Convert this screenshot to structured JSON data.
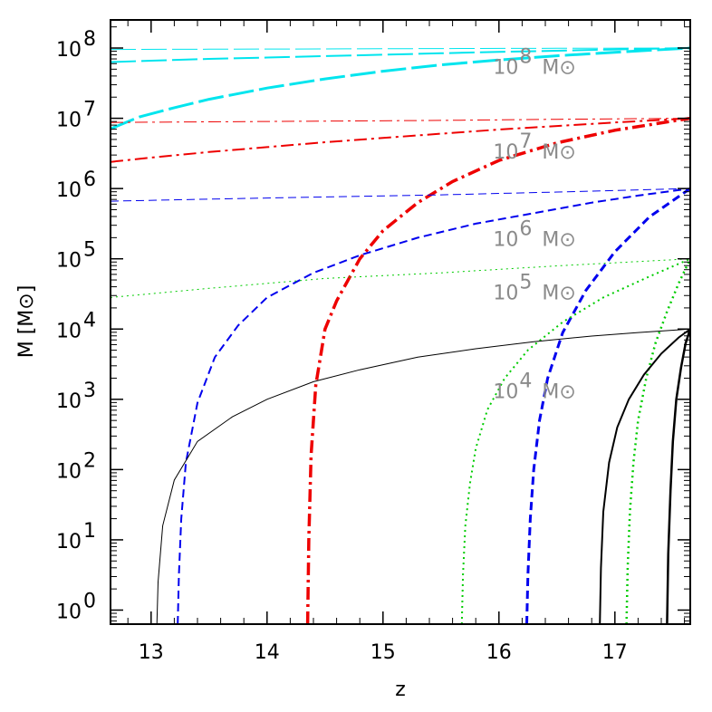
{
  "chart_data": {
    "type": "line",
    "title": "",
    "xlabel": "z",
    "ylabel": "M [M⊙]",
    "xlim": [
      12.65,
      17.65
    ],
    "ylim_log10": [
      -0.2,
      8.4
    ],
    "y_scale": "log",
    "grid": false,
    "x_ticks": [
      13,
      14,
      15,
      16,
      17
    ],
    "y_ticks": [
      {
        "base": "10",
        "exp": "0",
        "value_log10": 0
      },
      {
        "base": "10",
        "exp": "1",
        "value_log10": 1
      },
      {
        "base": "10",
        "exp": "2",
        "value_log10": 2
      },
      {
        "base": "10",
        "exp": "3",
        "value_log10": 3
      },
      {
        "base": "10",
        "exp": "4",
        "value_log10": 4
      },
      {
        "base": "10",
        "exp": "5",
        "value_log10": 5
      },
      {
        "base": "10",
        "exp": "6",
        "value_log10": 6
      },
      {
        "base": "10",
        "exp": "7",
        "value_log10": 7
      },
      {
        "base": "10",
        "exp": "8",
        "value_log10": 8
      }
    ],
    "annotations": [
      {
        "base": "10",
        "exp": "8",
        "unit": "M⊙",
        "z": 15.95,
        "log10_m": 7.63
      },
      {
        "base": "10",
        "exp": "7",
        "unit": "M⊙",
        "z": 15.95,
        "log10_m": 6.43
      },
      {
        "base": "10",
        "exp": "6",
        "unit": "M⊙",
        "z": 15.95,
        "log10_m": 5.18
      },
      {
        "base": "10",
        "exp": "5",
        "unit": "M⊙",
        "z": 15.95,
        "log10_m": 4.42
      },
      {
        "base": "10",
        "exp": "4",
        "unit": "M⊙",
        "z": 15.95,
        "log10_m": 3.02
      }
    ],
    "series": [
      {
        "color": "#00e5ee",
        "dash": "28,6",
        "width": 1,
        "x": [
          12.65,
          13.5,
          14.5,
          15.5,
          16.5,
          17.65
        ],
        "log10_y": [
          7.98,
          7.984,
          7.988,
          7.992,
          7.996,
          8.0
        ]
      },
      {
        "color": "#00e5ee",
        "dash": "28,6",
        "width": 2,
        "x": [
          12.65,
          13.0,
          13.5,
          14.0,
          14.5,
          15.0,
          15.5,
          16.0,
          16.5,
          17.0,
          17.65
        ],
        "log10_y": [
          7.8,
          7.82,
          7.845,
          7.865,
          7.885,
          7.905,
          7.925,
          7.945,
          7.962,
          7.98,
          8.0
        ]
      },
      {
        "color": "#00e5ee",
        "dash": "28,6",
        "width": 3,
        "x": [
          12.65,
          12.9,
          13.2,
          13.5,
          14.0,
          14.5,
          15.0,
          15.5,
          16.0,
          16.5,
          17.0,
          17.65
        ],
        "log10_y": [
          6.85,
          7.02,
          7.15,
          7.27,
          7.43,
          7.56,
          7.67,
          7.76,
          7.83,
          7.89,
          7.94,
          8.0
        ]
      },
      {
        "color": "#ee0000",
        "dash": "14,5,3,5",
        "width": 1,
        "x": [
          12.65,
          13.5,
          14.5,
          15.5,
          16.5,
          17.65
        ],
        "log10_y": [
          6.94,
          6.95,
          6.96,
          6.97,
          6.985,
          7.0
        ]
      },
      {
        "color": "#ee0000",
        "dash": "14,5,3,5",
        "width": 2,
        "x": [
          12.65,
          13.0,
          13.5,
          14.0,
          14.5,
          15.0,
          15.5,
          16.0,
          16.5,
          17.0,
          17.65
        ],
        "log10_y": [
          6.38,
          6.44,
          6.52,
          6.59,
          6.66,
          6.72,
          6.78,
          6.84,
          6.89,
          6.94,
          7.0
        ]
      },
      {
        "color": "#ee0000",
        "dash": "14,5,3,5",
        "width": 3.5,
        "x": [
          14.35,
          14.36,
          14.38,
          14.42,
          14.5,
          14.6,
          14.8,
          15.0,
          15.3,
          15.6,
          16.0,
          16.5,
          17.0,
          17.65
        ],
        "log10_y": [
          -0.2,
          1.0,
          2.2,
          3.2,
          4.0,
          4.4,
          5.0,
          5.4,
          5.8,
          6.1,
          6.4,
          6.65,
          6.83,
          7.0
        ]
      },
      {
        "color": "#0000ee",
        "dash": "9,5",
        "width": 1,
        "x": [
          12.65,
          13.5,
          14.5,
          15.5,
          16.5,
          17.65
        ],
        "log10_y": [
          5.82,
          5.85,
          5.88,
          5.91,
          5.95,
          6.0
        ]
      },
      {
        "color": "#0000ee",
        "dash": "9,5",
        "width": 2,
        "x": [
          13.23,
          13.24,
          13.26,
          13.3,
          13.4,
          13.55,
          13.75,
          14.0,
          14.4,
          14.8,
          15.3,
          15.8,
          16.3,
          16.8,
          17.2,
          17.65
        ],
        "log10_y": [
          -0.2,
          0.5,
          1.3,
          2.1,
          2.95,
          3.6,
          4.05,
          4.45,
          4.8,
          5.05,
          5.3,
          5.5,
          5.65,
          5.8,
          5.9,
          6.0
        ]
      },
      {
        "color": "#0000ee",
        "dash": "9,5",
        "width": 3,
        "x": [
          16.24,
          16.25,
          16.27,
          16.3,
          16.35,
          16.42,
          16.55,
          16.75,
          17.0,
          17.3,
          17.65
        ],
        "log10_y": [
          -0.2,
          0.5,
          1.3,
          2.0,
          2.7,
          3.3,
          3.95,
          4.55,
          5.1,
          5.6,
          6.0
        ]
      },
      {
        "color": "#00cc00",
        "dash": "2,4",
        "width": 1,
        "x": [
          12.65,
          13.5,
          14.5,
          15.5,
          16.5,
          17.65
        ],
        "log10_y": [
          4.45,
          4.58,
          4.72,
          4.8,
          4.9,
          5.0
        ]
      },
      {
        "color": "#00cc00",
        "dash": "2,4",
        "width": 2,
        "x": [
          15.68,
          15.69,
          15.71,
          15.75,
          15.8,
          15.9,
          16.05,
          16.25,
          16.55,
          16.9,
          17.3,
          17.65
        ],
        "log10_y": [
          -0.2,
          0.5,
          1.2,
          1.8,
          2.3,
          2.85,
          3.3,
          3.7,
          4.1,
          4.45,
          4.75,
          5.0
        ]
      },
      {
        "color": "#00cc00",
        "dash": "2,4",
        "width": 2.5,
        "x": [
          17.1,
          17.11,
          17.13,
          17.16,
          17.2,
          17.27,
          17.35,
          17.45,
          17.55,
          17.65
        ],
        "log10_y": [
          -0.2,
          0.6,
          1.4,
          2.1,
          2.7,
          3.3,
          3.8,
          4.25,
          4.65,
          5.0
        ]
      },
      {
        "color": "#000000",
        "dash": "",
        "width": 1,
        "x": [
          13.05,
          13.06,
          13.1,
          13.2,
          13.4,
          13.7,
          14.0,
          14.4,
          14.8,
          15.3,
          15.8,
          16.3,
          16.8,
          17.2,
          17.65
        ],
        "log10_y": [
          -0.2,
          0.4,
          1.2,
          1.85,
          2.4,
          2.75,
          3.0,
          3.25,
          3.42,
          3.6,
          3.72,
          3.82,
          3.9,
          3.95,
          4.0
        ]
      },
      {
        "color": "#000000",
        "dash": "",
        "width": 2,
        "x": [
          16.87,
          16.88,
          16.9,
          16.95,
          17.02,
          17.12,
          17.25,
          17.4,
          17.55,
          17.65
        ],
        "log10_y": [
          -0.2,
          0.6,
          1.4,
          2.1,
          2.6,
          3.0,
          3.35,
          3.65,
          3.88,
          4.0
        ]
      },
      {
        "color": "#000000",
        "dash": "",
        "width": 2.5,
        "x": [
          17.45,
          17.46,
          17.48,
          17.5,
          17.53,
          17.57,
          17.61,
          17.65
        ],
        "log10_y": [
          -0.2,
          0.8,
          1.7,
          2.4,
          3.0,
          3.45,
          3.8,
          4.0
        ]
      }
    ]
  }
}
